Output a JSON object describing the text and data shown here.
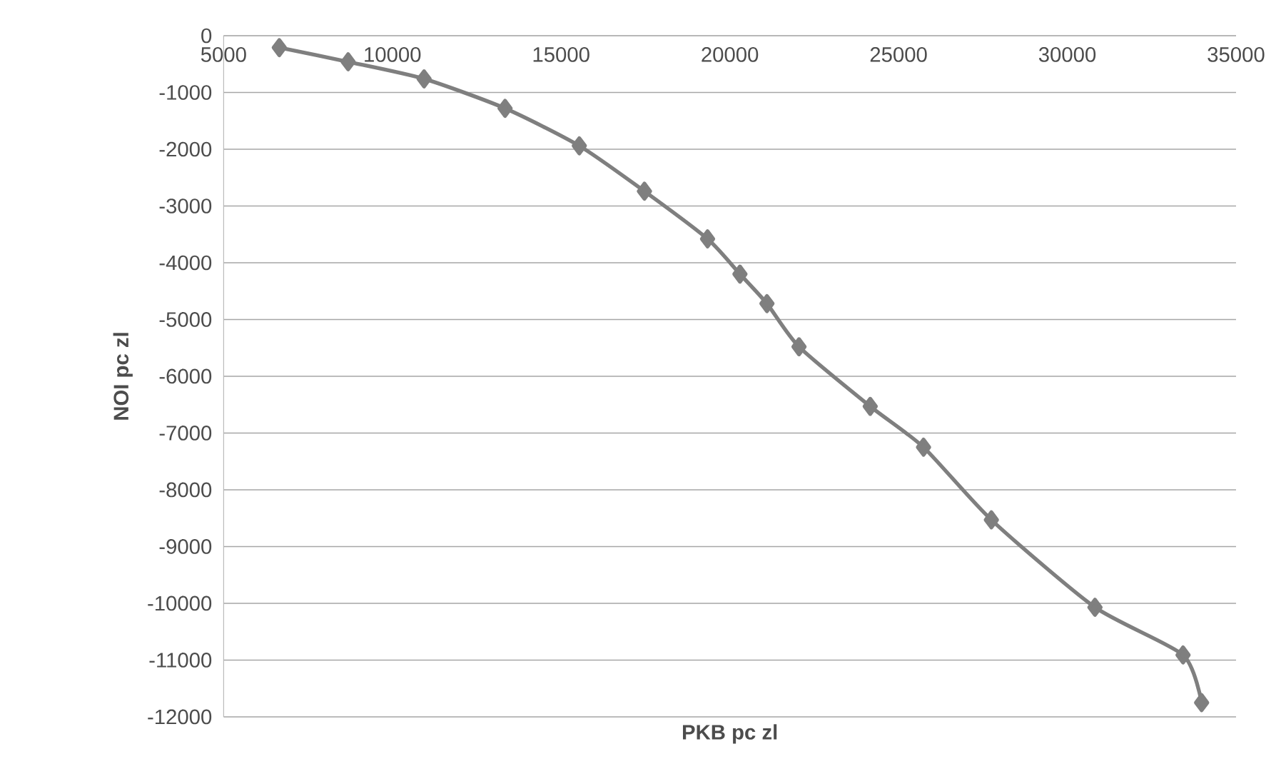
{
  "chart_data": {
    "type": "line",
    "xlabel": "PKB pc zl",
    "ylabel": "NOI pc zl",
    "x": [
      6650,
      8690,
      10940,
      13340,
      15540,
      17470,
      19340,
      20300,
      21100,
      22050,
      24160,
      25740,
      27750,
      30820,
      33430,
      33980
    ],
    "values": [
      -210,
      -460,
      -760,
      -1280,
      -1940,
      -2740,
      -3580,
      -4200,
      -4720,
      -5480,
      -6530,
      -7250,
      -8530,
      -10070,
      -10910,
      -11750
    ],
    "color": "#7f7f7f",
    "marker": "diamond",
    "line_style": "solid",
    "grid": "y",
    "xlim": [
      5000,
      35000
    ],
    "ylim": [
      -12000,
      0
    ],
    "xticks": [
      5000,
      10000,
      15000,
      20000,
      25000,
      30000,
      35000
    ],
    "yticks": [
      -12000,
      -11000,
      -10000,
      -9000,
      -8000,
      -7000,
      -6000,
      -5000,
      -4000,
      -3000,
      -2000,
      -1000,
      0
    ]
  }
}
